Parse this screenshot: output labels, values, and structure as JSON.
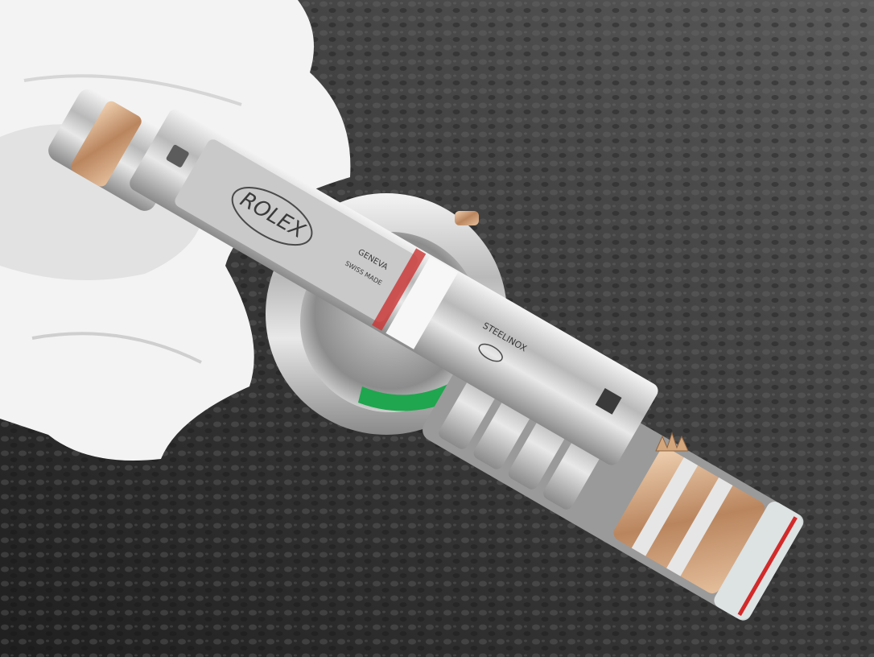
{
  "image": {
    "engravings": {
      "brand": "ROLEX",
      "city": "GENEVA",
      "origin": "SWISS MADE",
      "material": "STEELINOX"
    }
  }
}
